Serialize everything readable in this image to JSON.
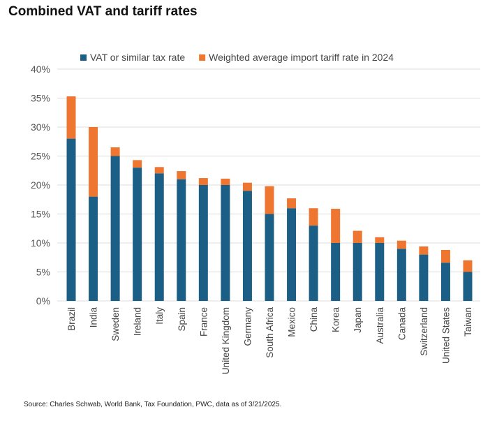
{
  "title": "Combined VAT and tariff rates",
  "source": "Source: Charles Schwab, World Bank, Tax Foundation, PWC, data as of 3/21/2025.",
  "chart_data": {
    "type": "bar",
    "stacked": true,
    "categories": [
      "Brazil",
      "India",
      "Sweden",
      "Ireland",
      "Italy",
      "Spain",
      "France",
      "United Kingdom",
      "Germany",
      "South Africa",
      "Mexico",
      "China",
      "Korea",
      "Japan",
      "Australia",
      "Canada",
      "Switzerland",
      "United States",
      "Taiwan"
    ],
    "series": [
      {
        "name": "VAT or similar tax rate",
        "color": "#1b5f86",
        "values": [
          28,
          18,
          25,
          23,
          22,
          21,
          20,
          20,
          19,
          15,
          16,
          13,
          10,
          10,
          10,
          9,
          8,
          6.6,
          5
        ]
      },
      {
        "name": "Weighted average import tariff rate in 2024",
        "color": "#ef7630",
        "values": [
          7.3,
          12,
          1.5,
          1.3,
          1.1,
          1.4,
          1.2,
          1.1,
          1.4,
          4.8,
          1.7,
          3,
          5.9,
          2.1,
          1,
          1.4,
          1.4,
          2.2,
          2
        ]
      }
    ],
    "ylim": [
      0,
      40
    ],
    "yticks": [
      "0%",
      "5%",
      "10%",
      "15%",
      "20%",
      "25%",
      "30%",
      "35%",
      "40%"
    ],
    "grid": true,
    "legend": "top"
  }
}
